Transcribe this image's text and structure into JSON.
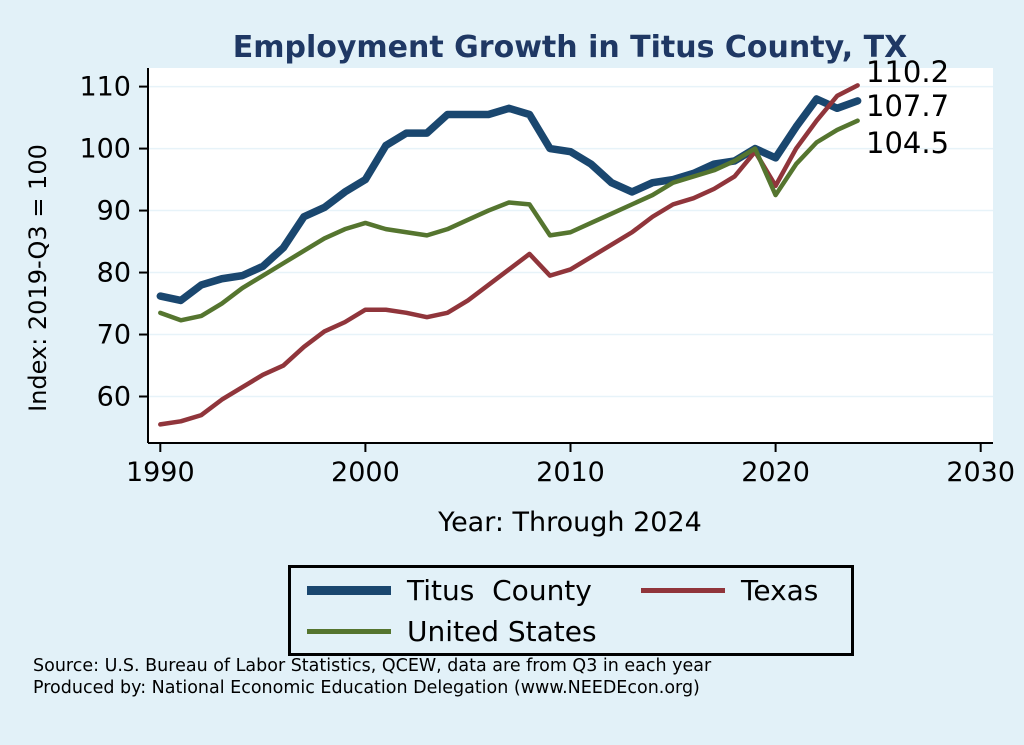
{
  "chart_data": {
    "type": "line",
    "title": "Employment Growth in Titus County, TX",
    "xlabel": "Year: Through 2024",
    "ylabel": "Index: 2019-Q3 = 100",
    "x_ticks": [
      1990,
      2000,
      2010,
      2020,
      2030
    ],
    "y_ticks": [
      60,
      70,
      80,
      90,
      100,
      110
    ],
    "xlim": [
      1989.4,
      2030.6
    ],
    "ylim": [
      52.5,
      113
    ],
    "grid": true,
    "legend_position": "bottom",
    "years": [
      1990,
      1991,
      1992,
      1993,
      1994,
      1995,
      1996,
      1997,
      1998,
      1999,
      2000,
      2001,
      2002,
      2003,
      2004,
      2005,
      2006,
      2007,
      2008,
      2009,
      2010,
      2011,
      2012,
      2013,
      2014,
      2015,
      2016,
      2017,
      2018,
      2019,
      2020,
      2021,
      2022,
      2023,
      2024
    ],
    "series": [
      {
        "name": "Titus  County",
        "color": "#1a476f",
        "width": 7.5,
        "end_label": "107.7",
        "values": [
          76.2,
          75.5,
          78,
          79,
          79.5,
          81,
          84,
          89,
          90.5,
          93,
          95,
          100.5,
          102.5,
          102.5,
          105.5,
          105.5,
          105.5,
          106.5,
          105.5,
          100,
          99.5,
          97.5,
          94.5,
          93,
          94.5,
          95,
          96,
          97.5,
          98,
          100,
          98.5,
          103.5,
          108,
          106.5,
          107.7
        ]
      },
      {
        "name": "Texas",
        "color": "#90353b",
        "width": 4.5,
        "end_label": "110.2",
        "values": [
          55.5,
          56,
          57,
          59.5,
          61.5,
          63.5,
          65,
          68,
          70.5,
          72,
          74,
          74,
          73.5,
          72.8,
          73.5,
          75.5,
          78,
          80.5,
          83,
          79.5,
          80.5,
          82.5,
          84.5,
          86.5,
          89,
          91,
          92,
          93.5,
          95.5,
          99.5,
          94,
          100,
          104.5,
          108.5,
          110.2
        ]
      },
      {
        "name": "United States",
        "color": "#55752f",
        "width": 4.5,
        "end_label": "104.5",
        "values": [
          73.5,
          72.3,
          73,
          75,
          77.5,
          79.5,
          81.5,
          83.5,
          85.5,
          87,
          88,
          87,
          86.5,
          86,
          87,
          88.5,
          90,
          91.3,
          91,
          86,
          86.5,
          88,
          89.5,
          91,
          92.5,
          94.5,
          95.5,
          96.5,
          98,
          100,
          92.5,
          97.5,
          101,
          103,
          104.5
        ]
      }
    ]
  },
  "colors": {
    "background": "#e2f1f8",
    "plot_background": "#ffffff",
    "grid": "#e7f3f9",
    "axis": "#000000",
    "title": "#1f3864"
  },
  "notes": {
    "source": "Source: U.S. Bureau of Labor Statistics, QCEW, data are from Q3 in each year",
    "produced": "Produced by: National Economic Education Delegation (www.NEEDEcon.org)"
  }
}
